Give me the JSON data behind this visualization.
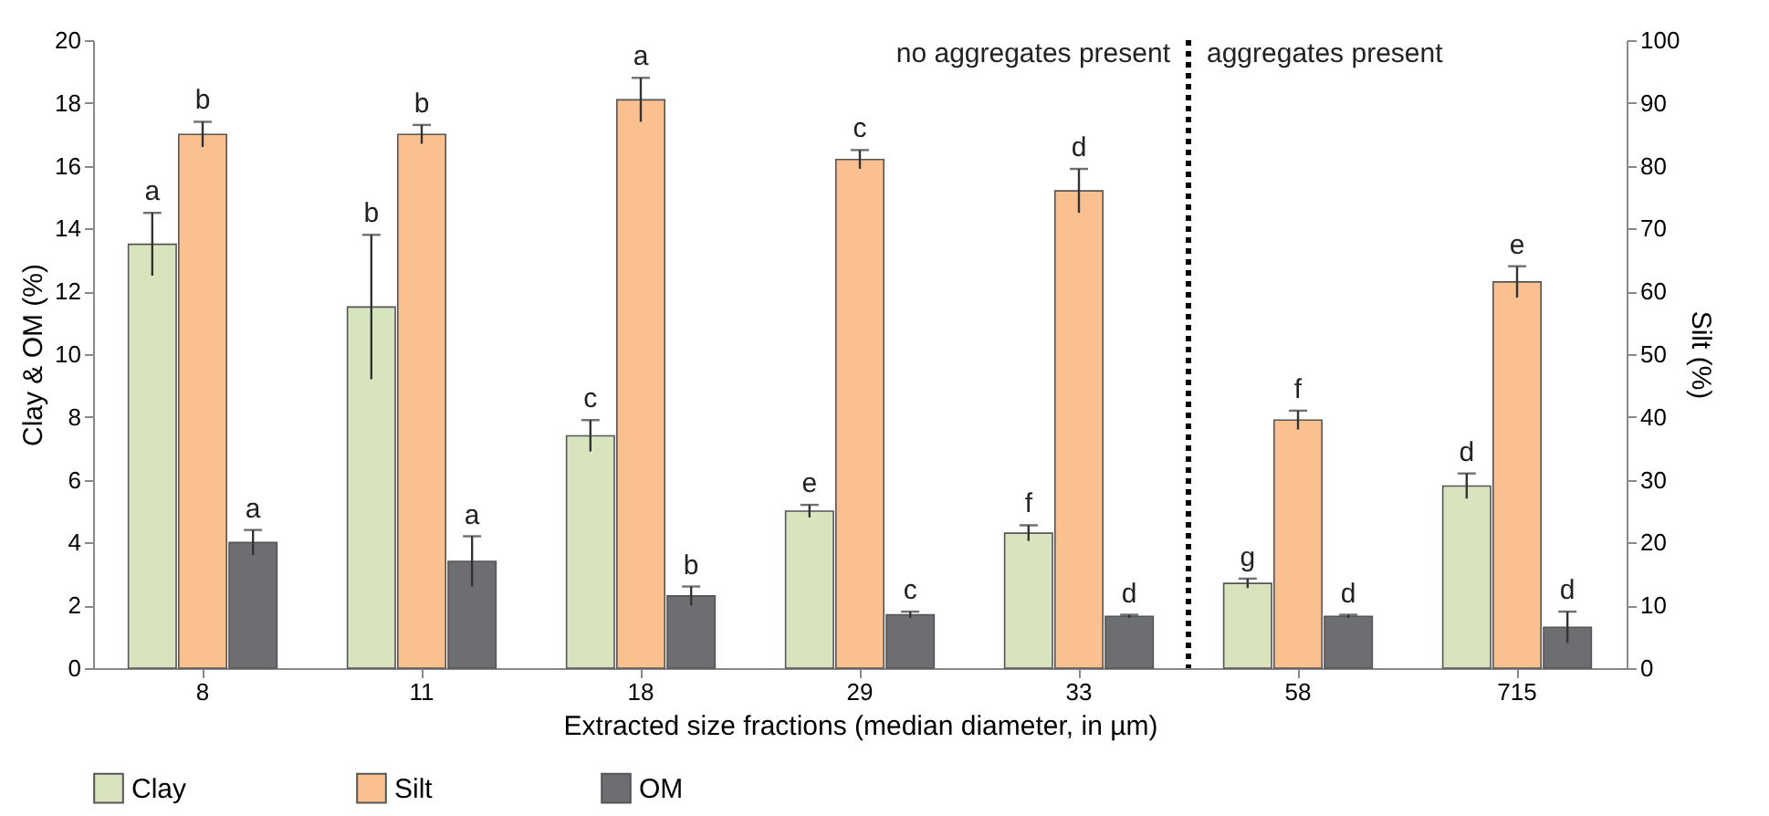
{
  "chart_data": {
    "type": "bar",
    "xlabel": "Extracted size fractions (median diameter, in µm)",
    "ylabel": "Clay & OM (%)",
    "y2label": "Silt (%)",
    "categories": [
      "8",
      "11",
      "18",
      "29",
      "33",
      "58",
      "715"
    ],
    "series": [
      {
        "name": "Clay",
        "color": "#d7e4bd",
        "values": [
          13.5,
          11.5,
          7.4,
          5.0,
          4.3,
          2.7,
          5.8
        ],
        "errors": [
          1.0,
          2.3,
          0.5,
          0.2,
          0.25,
          0.15,
          0.4
        ],
        "value_labels": [
          "a",
          "b",
          "c",
          "e",
          "f",
          "g",
          "d"
        ]
      },
      {
        "name": "Silt",
        "color": "#fac090",
        "axis": "y2",
        "values": [
          85,
          85,
          90.5,
          81,
          76,
          39.5,
          61.5
        ],
        "errors": [
          2,
          1.5,
          3.5,
          1.5,
          3.5,
          1.5,
          2.5
        ],
        "value_labels": [
          "b",
          "b",
          "a",
          "c",
          "d",
          "f",
          "e"
        ]
      },
      {
        "name": "OM",
        "color": "#6d6e71",
        "values": [
          4.0,
          3.4,
          2.3,
          1.7,
          1.65,
          1.65,
          1.3
        ],
        "errors": [
          0.4,
          0.8,
          0.3,
          0.1,
          0.05,
          0.05,
          0.5
        ],
        "value_labels": [
          "a",
          "a",
          "b",
          "c",
          "d",
          "d",
          "d"
        ]
      }
    ],
    "ylim": [
      0,
      20
    ],
    "yticks": [
      0,
      2,
      4,
      6,
      8,
      10,
      12,
      14,
      16,
      18,
      20
    ],
    "y2lim": [
      0,
      100
    ],
    "y2ticks": [
      0,
      10,
      20,
      30,
      40,
      50,
      60,
      70,
      80,
      90,
      100
    ],
    "annotations": [
      "no aggregates present",
      "aggregates present"
    ],
    "legend": "bottom",
    "grid": false
  }
}
